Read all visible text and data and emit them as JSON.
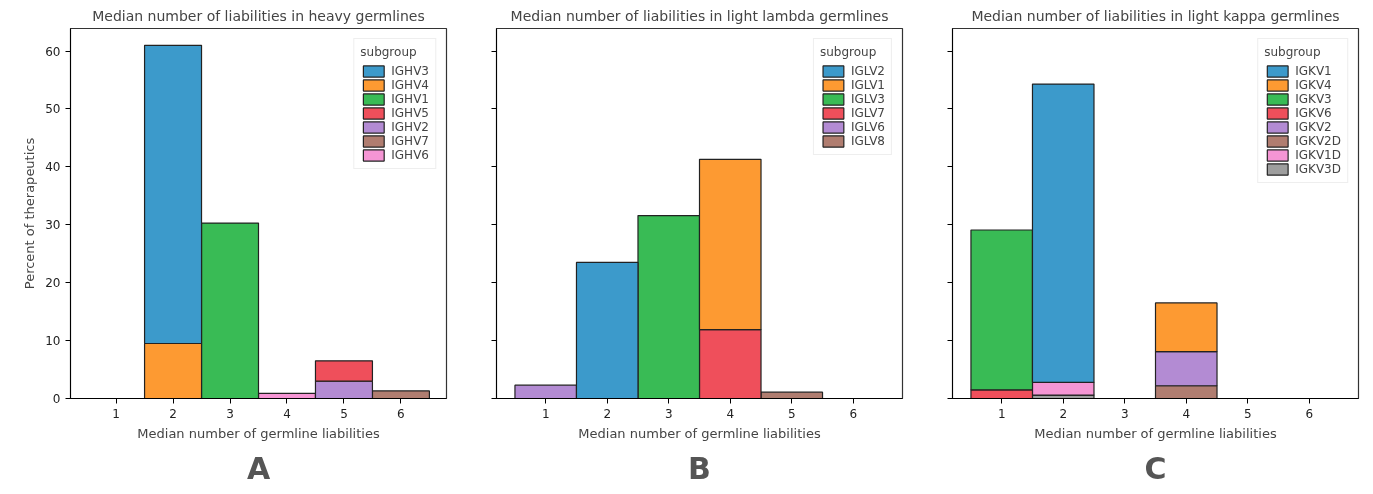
{
  "chart_data": [
    {
      "type": "bar",
      "stacked": true,
      "title": "Median number of liabilities in heavy germlines",
      "xlabel": "Median number of germline liabilities",
      "ylabel": "Percent of therapeutics",
      "legend_title": "subgroup",
      "legend": "top right",
      "grid": false,
      "categories": [
        "1",
        "2",
        "3",
        "4",
        "5",
        "6"
      ],
      "ylim": [
        0,
        63.9
      ],
      "yticks": [
        0,
        10,
        20,
        30,
        40,
        50,
        60
      ],
      "annotations": [
        "A"
      ],
      "series": [
        {
          "name": "IGHV6",
          "color": "#f595d4",
          "values": [
            null,
            null,
            null,
            0.9,
            null,
            null
          ]
        },
        {
          "name": "IGHV7",
          "color": "#b07d70",
          "values": [
            null,
            null,
            null,
            null,
            null,
            1.3
          ]
        },
        {
          "name": "IGHV2",
          "color": "#b38bd3",
          "values": [
            null,
            null,
            null,
            null,
            3.0,
            null
          ]
        },
        {
          "name": "IGHV5",
          "color": "#ef4f5b",
          "values": [
            null,
            null,
            null,
            null,
            3.5,
            null
          ]
        },
        {
          "name": "IGHV1",
          "color": "#39bb55",
          "values": [
            null,
            null,
            30.3,
            null,
            null,
            null
          ]
        },
        {
          "name": "IGHV4",
          "color": "#fd9a32",
          "values": [
            null,
            9.5,
            null,
            null,
            null,
            null
          ]
        },
        {
          "name": "IGHV3",
          "color": "#3c9acb",
          "values": [
            null,
            51.5,
            null,
            null,
            null,
            null
          ]
        }
      ]
    },
    {
      "type": "bar",
      "stacked": true,
      "title": "Median number of liabilities in light lambda germlines",
      "xlabel": "Median number of germline liabilities",
      "legend_title": "subgroup",
      "legend": "top right",
      "grid": false,
      "tick_labels": "x",
      "categories": [
        "1",
        "2",
        "3",
        "4",
        "5",
        "6"
      ],
      "ylim": [
        0,
        63.9
      ],
      "yticks": [
        0,
        10,
        20,
        30,
        40,
        50,
        60
      ],
      "annotations": [
        "B"
      ],
      "series": [
        {
          "name": "IGLV8",
          "color": "#b07d70",
          "values": [
            null,
            null,
            null,
            null,
            1.1,
            null
          ]
        },
        {
          "name": "IGLV6",
          "color": "#b38bd3",
          "values": [
            2.3,
            null,
            null,
            null,
            null,
            null
          ]
        },
        {
          "name": "IGLV7",
          "color": "#ef4f5b",
          "values": [
            null,
            null,
            null,
            11.9,
            null,
            null
          ]
        },
        {
          "name": "IGLV3",
          "color": "#39bb55",
          "values": [
            null,
            null,
            31.6,
            null,
            null,
            null
          ]
        },
        {
          "name": "IGLV1",
          "color": "#fd9a32",
          "values": [
            null,
            null,
            null,
            29.4,
            null,
            null
          ]
        },
        {
          "name": "IGLV2",
          "color": "#3c9acb",
          "values": [
            null,
            23.5,
            null,
            null,
            null,
            null
          ]
        }
      ]
    },
    {
      "type": "bar",
      "stacked": true,
      "title": "Median number of liabilities in light kappa germlines",
      "xlabel": "Median number of germline liabilities",
      "legend_title": "subgroup",
      "legend": "top right",
      "grid": false,
      "tick_labels": "x",
      "categories": [
        "1",
        "2",
        "3",
        "4",
        "5",
        "6"
      ],
      "ylim": [
        0,
        63.9
      ],
      "yticks": [
        0,
        10,
        20,
        30,
        40,
        50,
        60
      ],
      "annotations": [
        "C"
      ],
      "series": [
        {
          "name": "IGKV3D",
          "color": "#9e9e9e",
          "values": [
            null,
            0.6,
            null,
            null,
            null,
            null
          ]
        },
        {
          "name": "IGKV1D",
          "color": "#f595d4",
          "values": [
            null,
            2.2,
            null,
            null,
            null,
            null
          ]
        },
        {
          "name": "IGKV2D",
          "color": "#b07d70",
          "values": [
            null,
            null,
            null,
            2.2,
            null,
            null
          ]
        },
        {
          "name": "IGKV2",
          "color": "#b38bd3",
          "values": [
            null,
            null,
            null,
            5.9,
            null,
            null
          ]
        },
        {
          "name": "IGKV6",
          "color": "#ef4f5b",
          "values": [
            1.5,
            null,
            null,
            null,
            null,
            null
          ]
        },
        {
          "name": "IGKV3",
          "color": "#39bb55",
          "values": [
            27.6,
            null,
            null,
            null,
            null,
            null
          ]
        },
        {
          "name": "IGKV4",
          "color": "#fd9a32",
          "values": [
            null,
            null,
            null,
            8.4,
            null,
            null
          ]
        },
        {
          "name": "IGKV1",
          "color": "#3c9acb",
          "values": [
            null,
            51.5,
            null,
            null,
            null,
            null
          ]
        }
      ]
    }
  ]
}
